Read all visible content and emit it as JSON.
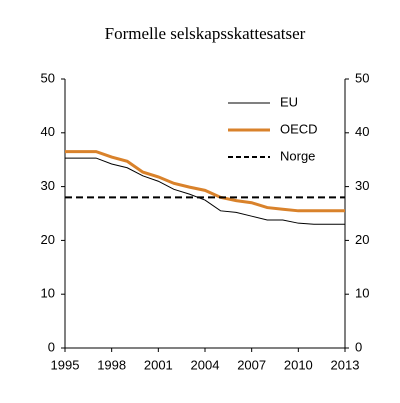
{
  "chart_data": {
    "type": "line",
    "title": "Formelle selskapsskattesatser",
    "x": [
      1995,
      1996,
      1997,
      1998,
      1999,
      2000,
      2001,
      2002,
      2003,
      2004,
      2005,
      2006,
      2007,
      2008,
      2009,
      2010,
      2011,
      2012,
      2013
    ],
    "series": [
      {
        "name": "EU",
        "color": "#000000",
        "width": 1,
        "dashed": false,
        "values": [
          35.3,
          35.3,
          35.3,
          34.2,
          33.5,
          32.0,
          31.0,
          29.5,
          28.6,
          27.5,
          25.5,
          25.2,
          24.5,
          23.8,
          23.8,
          23.2,
          23.0,
          23.0,
          23.0
        ]
      },
      {
        "name": "OECD",
        "color": "#d9822b",
        "width": 3,
        "dashed": false,
        "values": [
          36.5,
          36.5,
          36.5,
          35.5,
          34.7,
          32.7,
          31.8,
          30.6,
          29.9,
          29.3,
          28.0,
          27.4,
          27.0,
          26.1,
          25.8,
          25.5,
          25.5,
          25.5,
          25.5
        ]
      },
      {
        "name": "Norge",
        "color": "#000000",
        "width": 2,
        "dashed": true,
        "values": [
          28,
          28,
          28,
          28,
          28,
          28,
          28,
          28,
          28,
          28,
          28,
          28,
          28,
          28,
          28,
          28,
          28,
          28,
          28
        ]
      }
    ],
    "xlim": [
      1995,
      2013
    ],
    "xticks": [
      1995,
      1998,
      2001,
      2004,
      2007,
      2010,
      2013
    ],
    "ylim": [
      0,
      50
    ],
    "yticks": [
      0,
      10,
      20,
      30,
      40,
      50
    ],
    "y2lim": [
      0,
      50
    ],
    "y2ticks": [
      0,
      10,
      20,
      30,
      40,
      50
    ],
    "legend": "top-right",
    "grid": false
  }
}
